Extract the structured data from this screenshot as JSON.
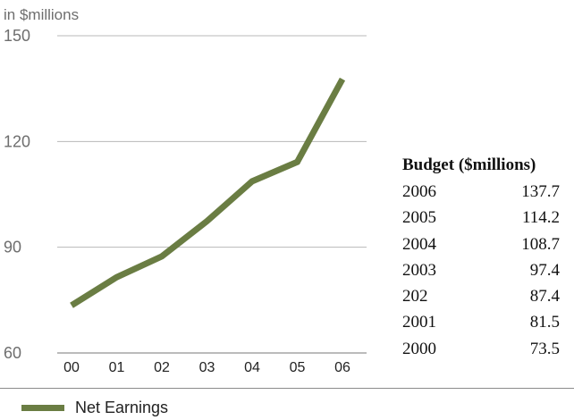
{
  "colors": {
    "series": "#6a7d43",
    "grid": "#b8b8b8",
    "axis": "#777777"
  },
  "unit_label": "in $millions",
  "table": {
    "title": "Budget ($millions)",
    "rows": [
      {
        "year": "2006",
        "value": "137.7"
      },
      {
        "year": "2005",
        "value": "114.2"
      },
      {
        "year": "2004",
        "value": "108.7"
      },
      {
        "year": "2003",
        "value": "97.4"
      },
      {
        "year": "202",
        "value": "87.4"
      },
      {
        "year": "2001",
        "value": "81.5"
      },
      {
        "year": "2000",
        "value": "73.5"
      }
    ]
  },
  "chart_data": {
    "type": "line",
    "categories": [
      "00",
      "01",
      "02",
      "03",
      "04",
      "05",
      "06"
    ],
    "series": [
      {
        "name": "Net Earnings",
        "values": [
          73.5,
          81.5,
          87.4,
          97.4,
          108.7,
          114.2,
          137.7
        ]
      }
    ],
    "ylim": [
      60,
      150
    ],
    "yticks": [
      60,
      90,
      120,
      150
    ],
    "ylabel": "in $millions",
    "grid": true,
    "legend": "bottom-left"
  }
}
